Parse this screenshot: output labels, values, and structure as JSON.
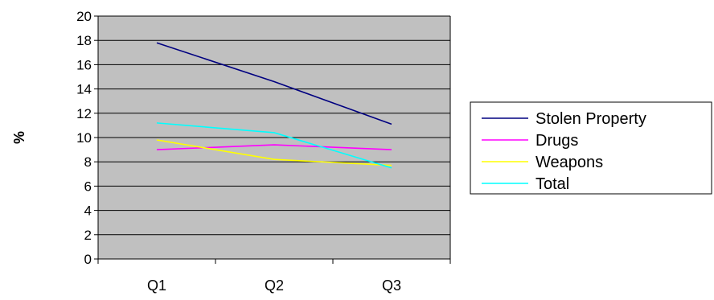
{
  "chart_data": {
    "type": "line",
    "categories": [
      "Q1",
      "Q2",
      "Q3"
    ],
    "ylabel": "%",
    "ylim": [
      0,
      20
    ],
    "yticks": [
      0,
      2,
      4,
      6,
      8,
      10,
      12,
      14,
      16,
      18,
      20
    ],
    "grid": true,
    "legend_position": "right",
    "plot_background": "#c0c0c0",
    "series": [
      {
        "name": "Stolen Property",
        "color": "#000080",
        "values": [
          17.8,
          14.6,
          11.1
        ]
      },
      {
        "name": "Drugs",
        "color": "#ff00ff",
        "values": [
          9.0,
          9.4,
          9.0
        ]
      },
      {
        "name": "Weapons",
        "color": "#ffff00",
        "values": [
          9.8,
          8.2,
          7.7
        ]
      },
      {
        "name": "Total",
        "color": "#00ffff",
        "values": [
          11.2,
          10.4,
          7.5
        ]
      }
    ]
  }
}
